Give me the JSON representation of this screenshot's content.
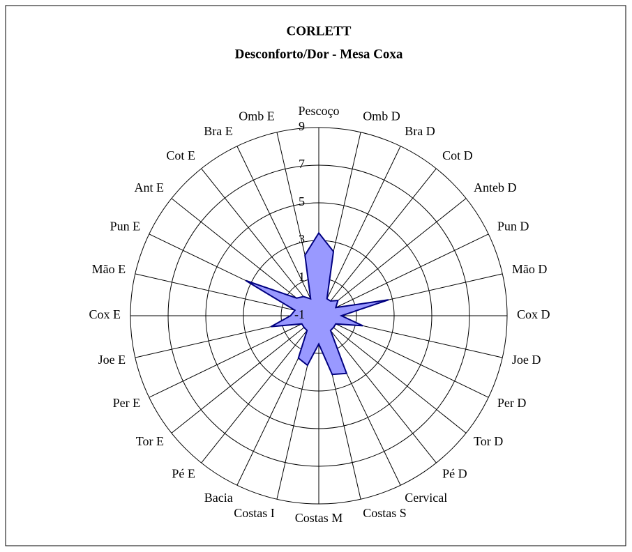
{
  "chart_data": {
    "type": "radar",
    "title": "CORLETT",
    "subtitle": "Desconforto/Dor - Mesa Coxa",
    "categories": [
      "Pescoço",
      "Omb D",
      "Bra D",
      "Cot D",
      "Anteb D",
      "Pun D",
      "Mão D",
      "Cox D",
      "Joe D",
      "Per D",
      "Tor D",
      "Pé D",
      "Cervical",
      "Costas S",
      "Costas M",
      "Costas I",
      "Bacia",
      "Pé E",
      "Tor E",
      "Per E",
      "Joe E",
      "Cox E",
      "Mão E",
      "Pun E",
      "Ant E",
      "Cot E",
      "Bra E",
      "Omb E"
    ],
    "values": [
      3.4,
      2.5,
      0,
      0,
      0.3,
      0,
      2.8,
      0.2,
      1.4,
      0,
      0,
      0,
      2.4,
      2.2,
      0.5,
      1.7,
      1.5,
      0,
      0,
      0,
      1.6,
      0.5,
      0.3,
      3.3,
      0.5,
      0.3,
      0,
      2.3
    ],
    "color": "#9999ff",
    "ylim": [
      -1,
      9
    ],
    "yticks": [
      -1,
      1,
      3,
      5,
      7,
      9
    ],
    "grid": true
  }
}
